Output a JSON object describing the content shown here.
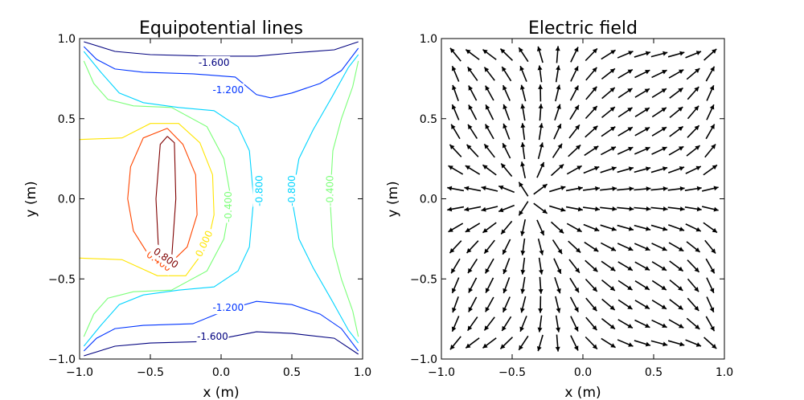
{
  "chart_data": [
    {
      "type": "contour",
      "title": "Equipotential lines",
      "xlabel": "x (m)",
      "ylabel": "y (m)",
      "xlim": [
        -1.0,
        1.0
      ],
      "ylim": [
        -1.0,
        1.0
      ],
      "xticks": [
        "−1.0",
        "−0.5",
        "0.0",
        "0.5",
        "1.0"
      ],
      "yticks": [
        "−1.0",
        "−0.5",
        "0.0",
        "0.5",
        "1.0"
      ],
      "grid": false,
      "colors": {
        "-1.600": "#00007f",
        "-1.200": "#0034ff",
        "-0.800": "#00d4ff",
        "-0.400": "#7cff79",
        "0.000": "#ffe500",
        "0.400": "#ff4600",
        "0.800": "#7f0000"
      },
      "levels": [
        {
          "value": -1.6,
          "paths": [
            [
              [
                -0.97,
                0.98
              ],
              [
                -0.75,
                0.92
              ],
              [
                -0.5,
                0.9
              ],
              [
                -0.1,
                0.89
              ],
              [
                0.25,
                0.89
              ],
              [
                0.5,
                0.91
              ],
              [
                0.8,
                0.93
              ],
              [
                0.97,
                0.98
              ]
            ],
            [
              [
                -0.97,
                -0.98
              ],
              [
                -0.75,
                -0.92
              ],
              [
                -0.5,
                -0.9
              ],
              [
                -0.1,
                -0.89
              ],
              [
                0.25,
                -0.83
              ],
              [
                0.5,
                -0.84
              ],
              [
                0.8,
                -0.87
              ],
              [
                0.97,
                -0.97
              ]
            ]
          ],
          "labels": [
            {
              "text": "-1.600",
              "at": [
                -0.05,
                0.85
              ]
            },
            {
              "text": "-1.600",
              "at": [
                -0.06,
                -0.86
              ]
            }
          ]
        },
        {
          "value": -1.2,
          "paths": [
            [
              [
                -0.97,
                0.95
              ],
              [
                -0.88,
                0.87
              ],
              [
                -0.75,
                0.81
              ],
              [
                -0.55,
                0.79
              ],
              [
                -0.2,
                0.78
              ],
              [
                0.1,
                0.76
              ],
              [
                0.25,
                0.65
              ],
              [
                0.35,
                0.63
              ],
              [
                0.5,
                0.66
              ],
              [
                0.7,
                0.72
              ],
              [
                0.85,
                0.8
              ],
              [
                0.97,
                0.94
              ]
            ],
            [
              [
                -0.97,
                -0.95
              ],
              [
                -0.88,
                -0.87
              ],
              [
                -0.75,
                -0.81
              ],
              [
                -0.55,
                -0.79
              ],
              [
                -0.2,
                -0.78
              ],
              [
                0.05,
                -0.69
              ],
              [
                0.25,
                -0.64
              ],
              [
                0.5,
                -0.66
              ],
              [
                0.7,
                -0.72
              ],
              [
                0.85,
                -0.81
              ],
              [
                0.97,
                -0.95
              ]
            ]
          ],
          "labels": [
            {
              "text": "-1.200",
              "at": [
                0.05,
                0.68
              ]
            },
            {
              "text": "-1.200",
              "at": [
                0.05,
                -0.68
              ]
            }
          ]
        },
        {
          "value": -0.8,
          "paths": [
            [
              [
                -0.97,
                0.92
              ],
              [
                -0.85,
                0.79
              ],
              [
                -0.72,
                0.66
              ],
              [
                -0.55,
                0.6
              ],
              [
                -0.3,
                0.57
              ],
              [
                -0.05,
                0.55
              ],
              [
                0.12,
                0.45
              ],
              [
                0.2,
                0.3
              ],
              [
                0.23,
                0.0
              ],
              [
                0.2,
                -0.3
              ],
              [
                0.12,
                -0.45
              ],
              [
                -0.05,
                -0.55
              ],
              [
                -0.3,
                -0.57
              ],
              [
                -0.55,
                -0.6
              ],
              [
                -0.72,
                -0.66
              ],
              [
                -0.85,
                -0.79
              ],
              [
                -0.97,
                -0.92
              ]
            ],
            [
              [
                0.97,
                0.9
              ],
              [
                0.9,
                0.82
              ],
              [
                0.78,
                0.63
              ],
              [
                0.65,
                0.43
              ],
              [
                0.55,
                0.25
              ],
              [
                0.5,
                0.0
              ],
              [
                0.55,
                -0.25
              ],
              [
                0.65,
                -0.43
              ],
              [
                0.78,
                -0.63
              ],
              [
                0.9,
                -0.82
              ],
              [
                0.97,
                -0.9
              ]
            ]
          ],
          "labels": [
            {
              "text": "-0.800",
              "at": [
                0.27,
                0.05
              ]
            },
            {
              "text": "-0.800",
              "at": [
                0.5,
                0.05
              ]
            }
          ]
        },
        {
          "value": -0.4,
          "paths": [
            [
              [
                -0.97,
                0.86
              ],
              [
                -0.9,
                0.72
              ],
              [
                -0.8,
                0.62
              ],
              [
                -0.62,
                0.58
              ],
              [
                -0.35,
                0.57
              ],
              [
                -0.1,
                0.45
              ],
              [
                0.02,
                0.25
              ],
              [
                0.07,
                0.0
              ],
              [
                0.02,
                -0.25
              ],
              [
                -0.1,
                -0.45
              ],
              [
                -0.35,
                -0.57
              ],
              [
                -0.62,
                -0.58
              ],
              [
                -0.8,
                -0.62
              ],
              [
                -0.9,
                -0.72
              ],
              [
                -0.97,
                -0.86
              ]
            ],
            [
              [
                0.97,
                0.86
              ],
              [
                0.93,
                0.7
              ],
              [
                0.85,
                0.5
              ],
              [
                0.79,
                0.3
              ],
              [
                0.77,
                0.0
              ],
              [
                0.79,
                -0.3
              ],
              [
                0.85,
                -0.5
              ],
              [
                0.93,
                -0.7
              ],
              [
                0.97,
                -0.86
              ]
            ]
          ],
          "labels": [
            {
              "text": "-0.400",
              "at": [
                0.05,
                -0.05
              ]
            },
            {
              "text": "-0.400",
              "at": [
                0.77,
                0.05
              ]
            }
          ]
        },
        {
          "value": 0.0,
          "paths": [
            [
              [
                -1.0,
                0.37
              ],
              [
                -0.7,
                0.38
              ],
              [
                -0.5,
                0.47
              ],
              [
                -0.3,
                0.47
              ],
              [
                -0.15,
                0.35
              ],
              [
                -0.06,
                0.15
              ],
              [
                -0.05,
                -0.1
              ],
              [
                -0.1,
                -0.3
              ],
              [
                -0.25,
                -0.48
              ],
              [
                -0.45,
                -0.48
              ],
              [
                -0.7,
                -0.38
              ],
              [
                -1.0,
                -0.37
              ]
            ]
          ],
          "labels": [
            {
              "text": "0.000",
              "at": [
                -0.12,
                -0.28
              ]
            }
          ]
        },
        {
          "value": 0.4,
          "paths": [
            [
              [
                -0.38,
                0.44
              ],
              [
                -0.55,
                0.38
              ],
              [
                -0.64,
                0.2
              ],
              [
                -0.66,
                0.0
              ],
              [
                -0.62,
                -0.2
              ],
              [
                -0.52,
                -0.34
              ],
              [
                -0.38,
                -0.42
              ],
              [
                -0.24,
                -0.3
              ],
              [
                -0.17,
                -0.1
              ],
              [
                -0.18,
                0.15
              ],
              [
                -0.27,
                0.34
              ],
              [
                -0.38,
                0.44
              ]
            ]
          ],
          "labels": [
            {
              "text": "0.400",
              "at": [
                -0.44,
                -0.39
              ]
            }
          ]
        },
        {
          "value": 0.8,
          "paths": [
            [
              [
                -0.38,
                0.39
              ],
              [
                -0.43,
                0.34
              ],
              [
                -0.46,
                0.0
              ],
              [
                -0.44,
                -0.36
              ],
              [
                -0.35,
                -0.38
              ],
              [
                -0.32,
                0.0
              ],
              [
                -0.33,
                0.35
              ],
              [
                -0.38,
                0.39
              ]
            ]
          ],
          "labels": [
            {
              "text": "0.800",
              "at": [
                -0.39,
                -0.37
              ]
            }
          ]
        }
      ]
    },
    {
      "type": "quiver",
      "title": "Electric field",
      "xlabel": "x (m)",
      "ylabel": "y (m)",
      "xlim": [
        -1.0,
        1.0
      ],
      "ylim": [
        -1.0,
        1.0
      ],
      "xticks": [
        "−1.0",
        "−0.5",
        "0.0",
        "0.5",
        "1.0"
      ],
      "yticks": [
        "−1.0",
        "−0.5",
        "0.0",
        "0.5",
        "1.0"
      ],
      "grid": false,
      "arrow_color": "#000000",
      "sources": [
        {
          "x": -0.38,
          "y": 0.0,
          "kind": "source"
        },
        {
          "x": 1.0,
          "y": 1.0,
          "kind": "sink"
        },
        {
          "x": -1.0,
          "y": 1.0,
          "kind": "sink"
        },
        {
          "x": 1.0,
          "y": -1.0,
          "kind": "sink"
        },
        {
          "x": -1.0,
          "y": -1.0,
          "kind": "sink"
        }
      ],
      "grid_points": {
        "x_start": -0.9,
        "x_end": 0.9,
        "y_start": -0.9,
        "y_end": 0.9,
        "n": 16
      }
    }
  ]
}
